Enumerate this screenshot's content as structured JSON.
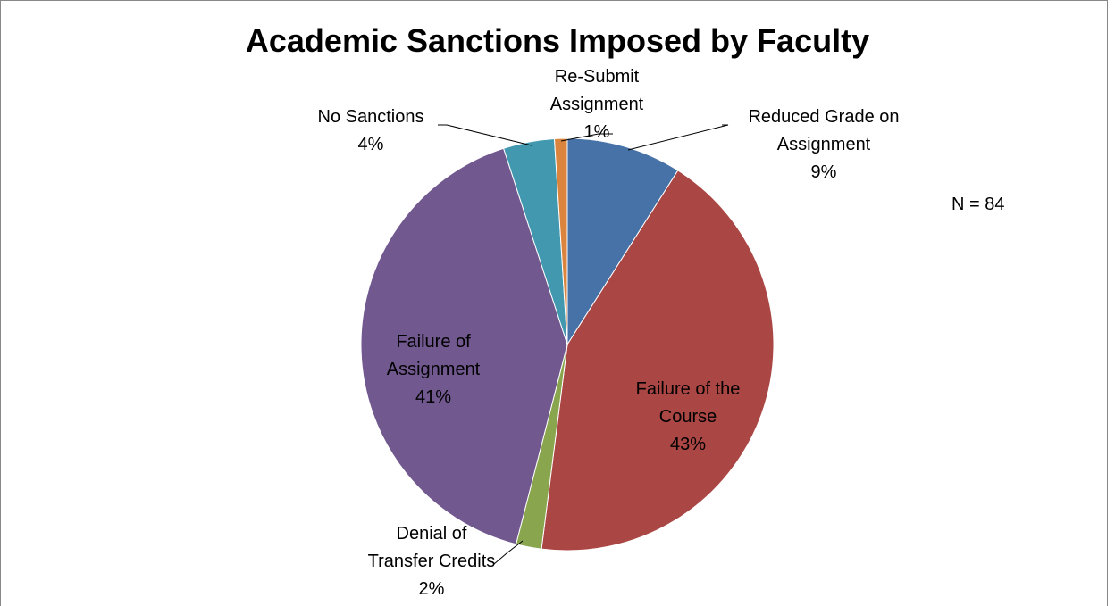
{
  "chart_data": {
    "type": "pie",
    "title": "Academic Sanctions Imposed by Faculty",
    "categories": [
      "Reduced Grade on Assignment",
      "Failure of the Course",
      "Denial of Transfer Credits",
      "Failure of Assignment",
      "No Sanctions",
      "Re-Submit Assignment"
    ],
    "values": [
      9,
      43,
      2,
      41,
      4,
      1
    ],
    "value_labels": [
      "9%",
      "43%",
      "2%",
      "41%",
      "4%",
      "1%"
    ],
    "colors": [
      "#4672a8",
      "#aa4643",
      "#89a54e",
      "#71588f",
      "#4198af",
      "#db843d"
    ],
    "annotation": "N = 84"
  }
}
